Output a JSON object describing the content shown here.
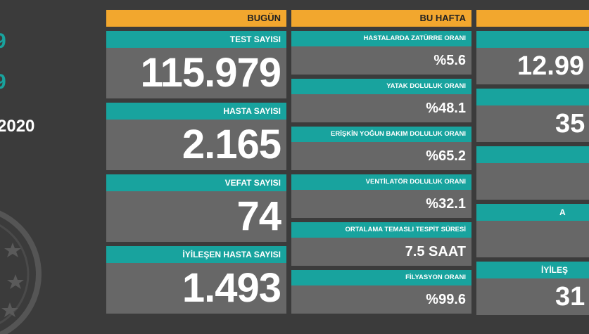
{
  "left": {
    "texts": [
      "9",
      "9",
      "2020"
    ]
  },
  "columns": [
    {
      "header": "BUGÜN",
      "cards": [
        {
          "label": "TEST SAYISI",
          "value": "115.979"
        },
        {
          "label": "HASTA SAYISI",
          "value": "2.165"
        },
        {
          "label": "VEFAT SAYISI",
          "value": "74"
        },
        {
          "label": "İYİLEŞEN HASTA SAYISI",
          "value": "1.493"
        }
      ]
    },
    {
      "header": "BU HAFTA",
      "cards": [
        {
          "label": "HASTALARDA ZATÜRRE ORANI",
          "value": "%5.6"
        },
        {
          "label": "YATAK DOLULUK ORANI",
          "value": "%48.1"
        },
        {
          "label": "ERİŞKİN YOĞUN BAKIM DOLULUK ORANI",
          "value": "%65.2"
        },
        {
          "label": "VENTİLATÖR DOLULUK ORANI",
          "value": "%32.1"
        },
        {
          "label": "ORTALAMA TEMASLI TESPİT SÜRESİ",
          "value": "7.5 SAAT"
        },
        {
          "label": "FİLYASYON ORANI",
          "value": "%99.6"
        }
      ]
    },
    {
      "cards": [
        {
          "value": "12.99"
        },
        {
          "value": "35"
        },
        {},
        {
          "label": "A"
        },
        {
          "label": "İYİLEŞ",
          "value": "31"
        }
      ]
    }
  ]
}
